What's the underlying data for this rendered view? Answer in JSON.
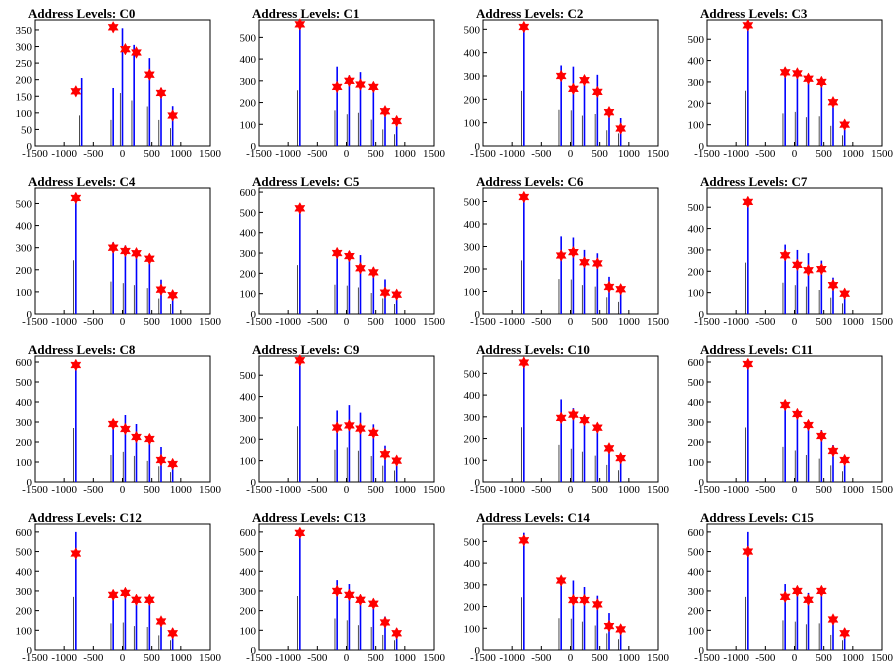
{
  "colors": {
    "histogram": "#0000ff",
    "marker": "#ff0000",
    "axis": "#000000"
  },
  "icons": {
    "peak_marker": "star-marker-icon"
  },
  "chart_data": [
    {
      "type": "bar",
      "title": "Address Levels: C0",
      "xlim": [
        -1500,
        1500
      ],
      "ylim": [
        0,
        380
      ],
      "yticks": [
        0,
        50,
        100,
        150,
        200,
        250,
        300,
        350
      ],
      "xtick_labels": [
        "-1500",
        "-1000",
        "-500",
        "0",
        "500",
        "1000",
        "1500"
      ],
      "peaks_y": [
        165,
        358,
        292,
        282,
        215,
        160,
        92
      ],
      "bars": [
        {
          "x": -700,
          "y": 205
        },
        {
          "x": -160,
          "y": 175
        },
        {
          "x": 0,
          "y": 355
        },
        {
          "x": 200,
          "y": 305
        },
        {
          "x": 460,
          "y": 265
        },
        {
          "x": 660,
          "y": 175
        },
        {
          "x": 860,
          "y": 120
        }
      ]
    },
    {
      "type": "bar",
      "title": "Address Levels: C1",
      "xlim": [
        -1500,
        1500
      ],
      "ylim": [
        0,
        580
      ],
      "yticks": [
        0,
        100,
        200,
        300,
        400,
        500
      ],
      "xtick_labels": [
        "-1500",
        "-1000",
        "-500",
        "0",
        "500",
        "1000",
        "1500"
      ],
      "peaks_y": [
        560,
        272,
        300,
        283,
        272,
        160,
        115
      ],
      "bars": [
        {
          "x": -800,
          "y": 570
        },
        {
          "x": -160,
          "y": 365
        },
        {
          "x": 50,
          "y": 325
        },
        {
          "x": 240,
          "y": 340
        },
        {
          "x": 460,
          "y": 270
        },
        {
          "x": 660,
          "y": 170
        },
        {
          "x": 860,
          "y": 120
        }
      ]
    },
    {
      "type": "bar",
      "title": "Address Levels: C2",
      "xlim": [
        -1500,
        1500
      ],
      "ylim": [
        0,
        540
      ],
      "yticks": [
        0,
        100,
        200,
        300,
        400,
        500
      ],
      "xtick_labels": [
        "-1500",
        "-1000",
        "-500",
        "0",
        "500",
        "1000",
        "1500"
      ],
      "peaks_y": [
        510,
        300,
        245,
        282,
        232,
        145,
        75
      ],
      "bars": [
        {
          "x": -800,
          "y": 525
        },
        {
          "x": -160,
          "y": 345
        },
        {
          "x": 50,
          "y": 340
        },
        {
          "x": 240,
          "y": 290
        },
        {
          "x": 460,
          "y": 305
        },
        {
          "x": 660,
          "y": 150
        },
        {
          "x": 860,
          "y": 120
        }
      ]
    },
    {
      "type": "bar",
      "title": "Address Levels: C3",
      "xlim": [
        -1500,
        1500
      ],
      "ylim": [
        0,
        590
      ],
      "yticks": [
        0,
        100,
        200,
        300,
        400,
        500
      ],
      "xtick_labels": [
        "-1500",
        "-1000",
        "-500",
        "0",
        "500",
        "1000",
        "1500"
      ],
      "peaks_y": [
        565,
        345,
        340,
        315,
        300,
        205,
        100
      ],
      "bars": [
        {
          "x": -800,
          "y": 575
        },
        {
          "x": -160,
          "y": 340
        },
        {
          "x": 50,
          "y": 355
        },
        {
          "x": 240,
          "y": 300
        },
        {
          "x": 460,
          "y": 310
        },
        {
          "x": 660,
          "y": 210
        },
        {
          "x": 860,
          "y": 110
        }
      ]
    },
    {
      "type": "bar",
      "title": "Address Levels: C4",
      "xlim": [
        -1500,
        1500
      ],
      "ylim": [
        0,
        570
      ],
      "yticks": [
        0,
        100,
        200,
        300,
        400,
        500
      ],
      "xtick_labels": [
        "-1500",
        "-1000",
        "-500",
        "0",
        "500",
        "1000",
        "1500"
      ],
      "peaks_y": [
        525,
        300,
        285,
        275,
        250,
        110,
        85
      ],
      "bars": [
        {
          "x": -800,
          "y": 540
        },
        {
          "x": -160,
          "y": 325
        },
        {
          "x": 50,
          "y": 310
        },
        {
          "x": 240,
          "y": 290
        },
        {
          "x": 460,
          "y": 260
        },
        {
          "x": 660,
          "y": 155
        },
        {
          "x": 860,
          "y": 100
        }
      ]
    },
    {
      "type": "bar",
      "title": "Address Levels: C5",
      "xlim": [
        -1500,
        1500
      ],
      "ylim": [
        0,
        620
      ],
      "yticks": [
        0,
        100,
        200,
        300,
        400,
        500,
        600
      ],
      "xtick_labels": [
        "-1500",
        "-1000",
        "-500",
        "0",
        "500",
        "1000",
        "1500"
      ],
      "peaks_y": [
        520,
        300,
        285,
        225,
        205,
        105,
        95
      ],
      "bars": [
        {
          "x": -800,
          "y": 535
        },
        {
          "x": -160,
          "y": 320
        },
        {
          "x": 50,
          "y": 310
        },
        {
          "x": 240,
          "y": 290
        },
        {
          "x": 460,
          "y": 230
        },
        {
          "x": 660,
          "y": 170
        },
        {
          "x": 860,
          "y": 110
        }
      ]
    },
    {
      "type": "bar",
      "title": "Address Levels: C6",
      "xlim": [
        -1500,
        1500
      ],
      "ylim": [
        0,
        560
      ],
      "yticks": [
        0,
        100,
        200,
        300,
        400,
        500
      ],
      "xtick_labels": [
        "-1500",
        "-1000",
        "-500",
        "0",
        "500",
        "1000",
        "1500"
      ],
      "peaks_y": [
        520,
        260,
        275,
        230,
        225,
        120,
        110
      ],
      "bars": [
        {
          "x": -800,
          "y": 530
        },
        {
          "x": -160,
          "y": 345
        },
        {
          "x": 50,
          "y": 340
        },
        {
          "x": 240,
          "y": 285
        },
        {
          "x": 460,
          "y": 270
        },
        {
          "x": 660,
          "y": 165
        },
        {
          "x": 860,
          "y": 120
        }
      ]
    },
    {
      "type": "bar",
      "title": "Address Levels: C7",
      "xlim": [
        -1500,
        1500
      ],
      "ylim": [
        0,
        590
      ],
      "yticks": [
        0,
        100,
        200,
        300,
        400,
        500
      ],
      "xtick_labels": [
        "-1500",
        "-1000",
        "-500",
        "0",
        "500",
        "1000",
        "1500"
      ],
      "peaks_y": [
        525,
        275,
        230,
        205,
        210,
        135,
        95
      ],
      "bars": [
        {
          "x": -800,
          "y": 535
        },
        {
          "x": -160,
          "y": 325
        },
        {
          "x": 50,
          "y": 300
        },
        {
          "x": 240,
          "y": 285
        },
        {
          "x": 460,
          "y": 250
        },
        {
          "x": 660,
          "y": 170
        },
        {
          "x": 860,
          "y": 110
        }
      ]
    },
    {
      "type": "bar",
      "title": "Address Levels: C8",
      "xlim": [
        -1500,
        1500
      ],
      "ylim": [
        0,
        630
      ],
      "yticks": [
        0,
        100,
        200,
        300,
        400,
        500,
        600
      ],
      "xtick_labels": [
        "-1500",
        "-1000",
        "-500",
        "0",
        "500",
        "1000",
        "1500"
      ],
      "peaks_y": [
        585,
        290,
        265,
        225,
        215,
        110,
        90
      ],
      "bars": [
        {
          "x": -800,
          "y": 600
        },
        {
          "x": -160,
          "y": 300
        },
        {
          "x": 50,
          "y": 335
        },
        {
          "x": 240,
          "y": 290
        },
        {
          "x": 460,
          "y": 235
        },
        {
          "x": 660,
          "y": 175
        },
        {
          "x": 860,
          "y": 110
        }
      ]
    },
    {
      "type": "bar",
      "title": "Address Levels: C9",
      "xlim": [
        -1500,
        1500
      ],
      "ylim": [
        0,
        590
      ],
      "yticks": [
        0,
        100,
        200,
        300,
        400,
        500
      ],
      "xtick_labels": [
        "-1500",
        "-1000",
        "-500",
        "0",
        "500",
        "1000",
        "1500"
      ],
      "peaks_y": [
        570,
        255,
        265,
        250,
        230,
        130,
        100
      ],
      "bars": [
        {
          "x": -800,
          "y": 580
        },
        {
          "x": -160,
          "y": 335
        },
        {
          "x": 50,
          "y": 360
        },
        {
          "x": 240,
          "y": 325
        },
        {
          "x": 460,
          "y": 270
        },
        {
          "x": 660,
          "y": 170
        },
        {
          "x": 860,
          "y": 120
        }
      ]
    },
    {
      "type": "bar",
      "title": "Address Levels: C10",
      "xlim": [
        -1500,
        1500
      ],
      "ylim": [
        0,
        580
      ],
      "yticks": [
        0,
        100,
        200,
        300,
        400,
        500
      ],
      "xtick_labels": [
        "-1500",
        "-1000",
        "-500",
        "0",
        "500",
        "1000",
        "1500"
      ],
      "peaks_y": [
        550,
        295,
        310,
        285,
        250,
        155,
        110
      ],
      "bars": [
        {
          "x": -800,
          "y": 560
        },
        {
          "x": -160,
          "y": 380
        },
        {
          "x": 50,
          "y": 340
        },
        {
          "x": 240,
          "y": 310
        },
        {
          "x": 460,
          "y": 270
        },
        {
          "x": 660,
          "y": 175
        },
        {
          "x": 860,
          "y": 120
        }
      ]
    },
    {
      "type": "bar",
      "title": "Address Levels: C11",
      "xlim": [
        -1500,
        1500
      ],
      "ylim": [
        0,
        630
      ],
      "yticks": [
        0,
        100,
        200,
        300,
        400,
        500,
        600
      ],
      "xtick_labels": [
        "-1500",
        "-1000",
        "-500",
        "0",
        "500",
        "1000",
        "1500"
      ],
      "peaks_y": [
        590,
        385,
        340,
        285,
        230,
        155,
        110
      ],
      "bars": [
        {
          "x": -800,
          "y": 605
        },
        {
          "x": -160,
          "y": 390
        },
        {
          "x": 50,
          "y": 350
        },
        {
          "x": 240,
          "y": 300
        },
        {
          "x": 460,
          "y": 260
        },
        {
          "x": 660,
          "y": 185
        },
        {
          "x": 860,
          "y": 120
        }
      ]
    },
    {
      "type": "bar",
      "title": "Address Levels: C12",
      "xlim": [
        -1500,
        1500
      ],
      "ylim": [
        0,
        640
      ],
      "yticks": [
        0,
        100,
        200,
        300,
        400,
        500,
        600
      ],
      "xtick_labels": [
        "-1500",
        "-1000",
        "-500",
        "0",
        "500",
        "1000",
        "1500"
      ],
      "peaks_y": [
        490,
        280,
        290,
        255,
        255,
        145,
        85
      ],
      "bars": [
        {
          "x": -800,
          "y": 600
        },
        {
          "x": -160,
          "y": 300
        },
        {
          "x": 50,
          "y": 310
        },
        {
          "x": 240,
          "y": 270
        },
        {
          "x": 460,
          "y": 260
        },
        {
          "x": 660,
          "y": 165
        },
        {
          "x": 860,
          "y": 110
        }
      ]
    },
    {
      "type": "bar",
      "title": "Address Levels: C13",
      "xlim": [
        -1500,
        1500
      ],
      "ylim": [
        0,
        640
      ],
      "yticks": [
        0,
        100,
        200,
        300,
        400,
        500,
        600
      ],
      "xtick_labels": [
        "-1500",
        "-1000",
        "-500",
        "0",
        "500",
        "1000",
        "1500"
      ],
      "peaks_y": [
        595,
        300,
        280,
        255,
        235,
        140,
        85
      ],
      "bars": [
        {
          "x": -800,
          "y": 610
        },
        {
          "x": -160,
          "y": 355
        },
        {
          "x": 50,
          "y": 335
        },
        {
          "x": 240,
          "y": 280
        },
        {
          "x": 460,
          "y": 260
        },
        {
          "x": 660,
          "y": 170
        },
        {
          "x": 860,
          "y": 110
        }
      ]
    },
    {
      "type": "bar",
      "title": "Address Levels: C14",
      "xlim": [
        -1500,
        1500
      ],
      "ylim": [
        0,
        580
      ],
      "yticks": [
        0,
        100,
        200,
        300,
        400,
        500
      ],
      "xtick_labels": [
        "-1500",
        "-1000",
        "-500",
        "0",
        "500",
        "1000",
        "1500"
      ],
      "peaks_y": [
        505,
        320,
        230,
        230,
        210,
        110,
        95
      ],
      "bars": [
        {
          "x": -800,
          "y": 540
        },
        {
          "x": -160,
          "y": 325
        },
        {
          "x": 50,
          "y": 320
        },
        {
          "x": 240,
          "y": 290
        },
        {
          "x": 460,
          "y": 250
        },
        {
          "x": 660,
          "y": 170
        },
        {
          "x": 860,
          "y": 110
        }
      ]
    },
    {
      "type": "bar",
      "title": "Address Levels: C15",
      "xlim": [
        -1500,
        1500
      ],
      "ylim": [
        0,
        640
      ],
      "yticks": [
        0,
        100,
        200,
        300,
        400,
        500,
        600
      ],
      "xtick_labels": [
        "-1500",
        "-1000",
        "-500",
        "0",
        "500",
        "1000",
        "1500"
      ],
      "peaks_y": [
        500,
        270,
        300,
        255,
        300,
        155,
        85
      ],
      "bars": [
        {
          "x": -800,
          "y": 600
        },
        {
          "x": -160,
          "y": 335
        },
        {
          "x": 50,
          "y": 320
        },
        {
          "x": 240,
          "y": 290
        },
        {
          "x": 460,
          "y": 300
        },
        {
          "x": 660,
          "y": 170
        },
        {
          "x": 860,
          "y": 110
        }
      ]
    }
  ]
}
